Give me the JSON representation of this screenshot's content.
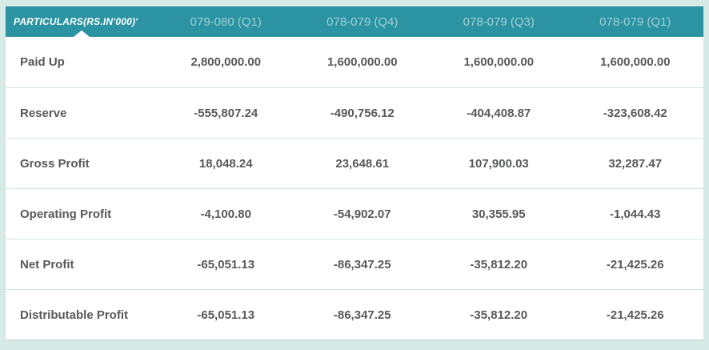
{
  "table": {
    "header": {
      "particulars_label": "PARTICULARS(RS.IN'000)'",
      "columns": [
        "079-080 (Q1)",
        "078-079 (Q4)",
        "078-079 (Q3)",
        "078-079 (Q1)"
      ]
    },
    "rows": [
      {
        "label": "Paid Up",
        "values": [
          "2,800,000.00",
          "1,600,000.00",
          "1,600,000.00",
          "1,600,000.00"
        ]
      },
      {
        "label": "Reserve",
        "values": [
          "-555,807.24",
          "-490,756.12",
          "-404,408.87",
          "-323,608.42"
        ]
      },
      {
        "label": "Gross Profit",
        "values": [
          "18,048.24",
          "23,648.61",
          "107,900.03",
          "32,287.47"
        ]
      },
      {
        "label": "Operating Profit",
        "values": [
          "-4,100.80",
          "-54,902.07",
          "30,355.95",
          "-1,044.43"
        ]
      },
      {
        "label": "Net Profit",
        "values": [
          "-65,051.13",
          "-86,347.25",
          "-35,812.20",
          "-21,425.26"
        ]
      },
      {
        "label": "Distributable Profit",
        "values": [
          "-65,051.13",
          "-86,347.25",
          "-35,812.20",
          "-21,425.26"
        ]
      }
    ]
  },
  "colors": {
    "page-bg": "#d6eae6",
    "header-bg": "#2b93a2",
    "header-text": "#9fd0d8",
    "header-label-text": "#ffffff",
    "body-text": "#58595b",
    "row-border": "#cfe6e2"
  }
}
